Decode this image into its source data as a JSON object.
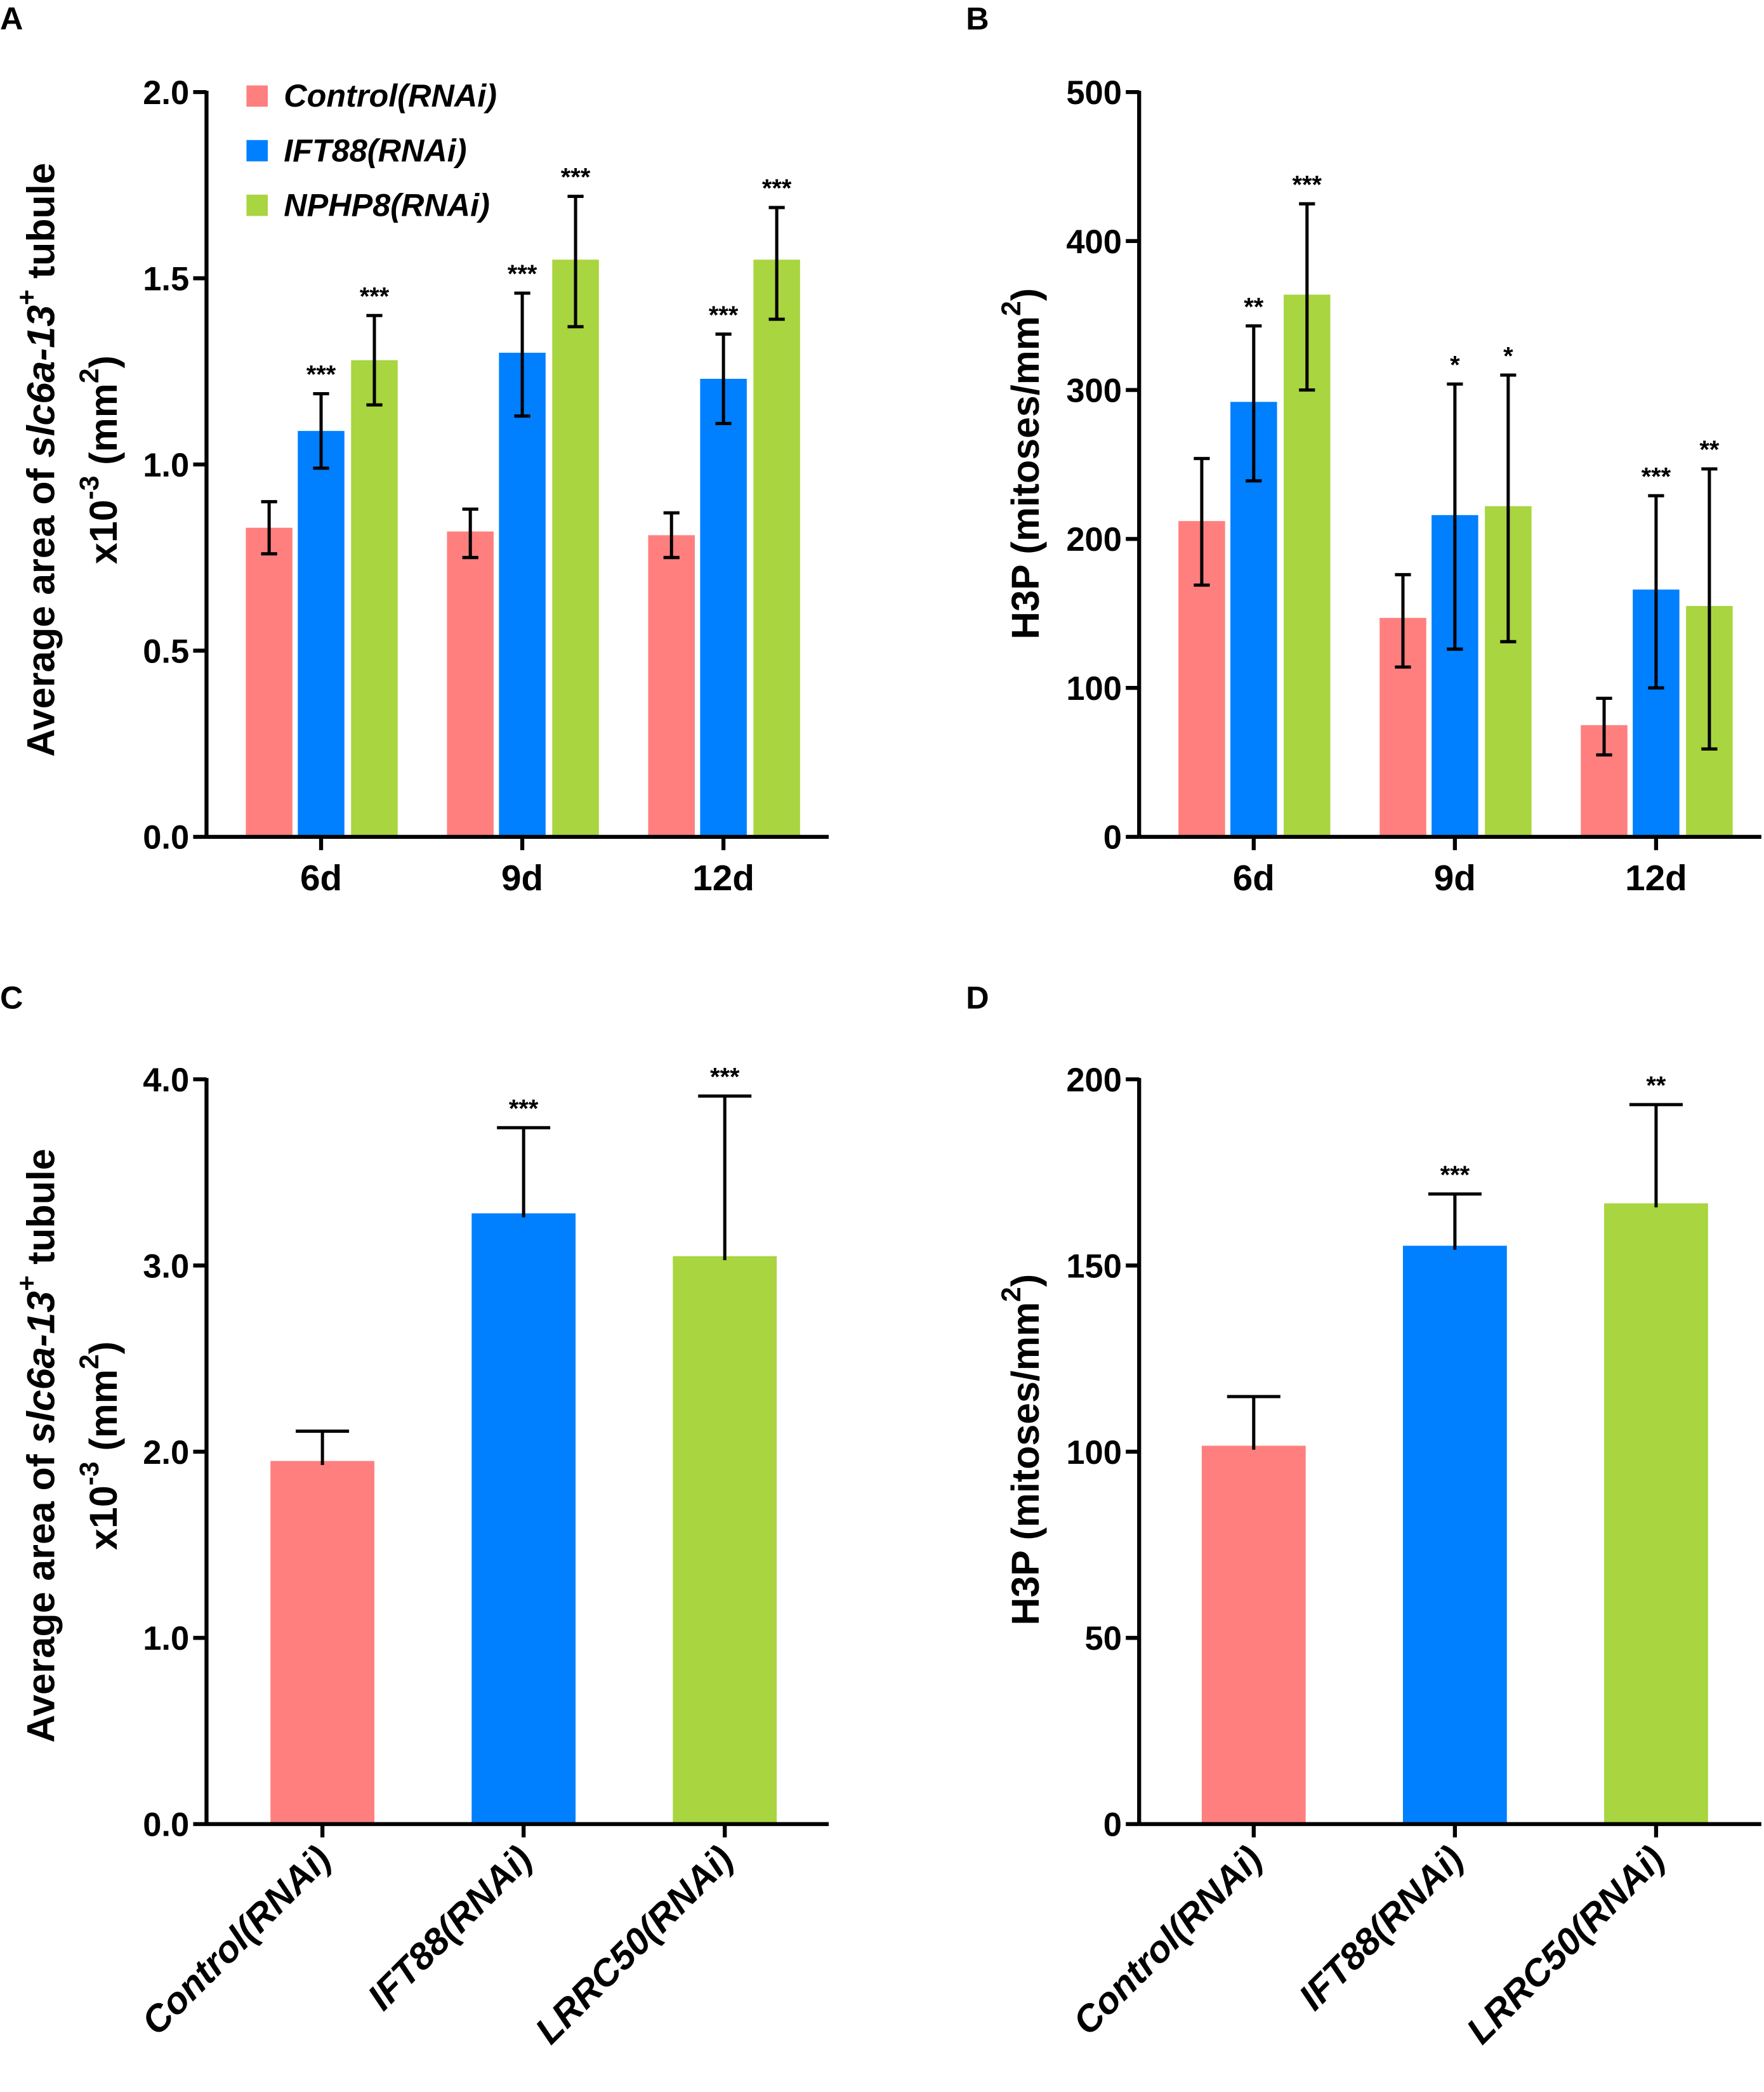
{
  "colors": {
    "control": "#FF7F7F",
    "ift88": "#007FFF",
    "green": "#A8D540",
    "axis": "#000000"
  },
  "chart_data": [
    {
      "panel": "A",
      "type": "bar",
      "categories": [
        "6d",
        "9d",
        "12d"
      ],
      "ylim": [
        0,
        2.0
      ],
      "yticks": [
        "0.0",
        "0.5",
        "1.0",
        "1.5",
        "2.0"
      ],
      "ytick_values": [
        0,
        0.5,
        1.0,
        1.5,
        2.0
      ],
      "ylabel": [
        [
          {
            "t": "Average area of "
          },
          {
            "t": "slc6a-13",
            "i": true
          },
          {
            "t": "+",
            "sup": true
          },
          {
            "t": " tubule"
          }
        ],
        [
          {
            "t": "x10"
          },
          {
            "t": "-3",
            "sup": true
          },
          {
            "t": " (mm"
          },
          {
            "t": "2",
            "sup": true
          },
          {
            "t": ")"
          }
        ]
      ],
      "legend": {
        "position": "top-left",
        "entries": [
          "Control(RNAi)",
          "IFT88(RNAi)",
          "NPHP8(RNAi)"
        ]
      },
      "series": [
        {
          "name": "Control(RNAi)",
          "color_key": "control",
          "values": [
            0.83,
            0.82,
            0.81
          ],
          "err_hi": [
            0.9,
            0.88,
            0.87
          ],
          "err_lo": [
            0.76,
            0.75,
            0.75
          ],
          "sig": [
            "",
            "",
            ""
          ]
        },
        {
          "name": "IFT88(RNAi)",
          "color_key": "ift88",
          "values": [
            1.09,
            1.3,
            1.23
          ],
          "err_hi": [
            1.19,
            1.46,
            1.35
          ],
          "err_lo": [
            0.99,
            1.13,
            1.11
          ],
          "sig": [
            "***",
            "***",
            "***"
          ]
        },
        {
          "name": "NPHP8(RNAi)",
          "color_key": "green",
          "values": [
            1.28,
            1.55,
            1.55
          ],
          "err_hi": [
            1.4,
            1.72,
            1.69
          ],
          "err_lo": [
            1.16,
            1.37,
            1.39
          ],
          "sig": [
            "***",
            "***",
            "***"
          ]
        }
      ]
    },
    {
      "panel": "B",
      "type": "bar",
      "categories": [
        "6d",
        "9d",
        "12d"
      ],
      "ylim": [
        0,
        500
      ],
      "yticks": [
        "0",
        "100",
        "200",
        "300",
        "400",
        "500"
      ],
      "ytick_values": [
        0,
        100,
        200,
        300,
        400,
        500
      ],
      "ylabel": [
        [
          {
            "t": "H3P (mitoses/mm"
          },
          {
            "t": "2",
            "sup": true
          },
          {
            "t": ")"
          }
        ]
      ],
      "series": [
        {
          "color_key": "control",
          "values": [
            212,
            147,
            75
          ],
          "err_hi": [
            254,
            176,
            93
          ],
          "err_lo": [
            169,
            114,
            55
          ],
          "sig": [
            "",
            "",
            ""
          ]
        },
        {
          "color_key": "ift88",
          "values": [
            292,
            216,
            166
          ],
          "err_hi": [
            343,
            304,
            229
          ],
          "err_lo": [
            239,
            126,
            100
          ],
          "sig": [
            "**",
            "*",
            "***"
          ]
        },
        {
          "color_key": "green",
          "values": [
            364,
            222,
            155
          ],
          "err_hi": [
            425,
            310,
            247
          ],
          "err_lo": [
            300,
            131,
            59
          ],
          "sig": [
            "***",
            "*",
            "**"
          ]
        }
      ]
    },
    {
      "panel": "C",
      "type": "bar",
      "categories": [
        "Control(RNAi)",
        "IFT88(RNAi)",
        "LRRC50(RNAi)"
      ],
      "ylim": [
        0,
        4.0
      ],
      "yticks": [
        "0.0",
        "1.0",
        "2.0",
        "3.0",
        "4.0"
      ],
      "ytick_values": [
        0,
        1,
        2,
        3,
        4
      ],
      "ylabel": [
        [
          {
            "t": "Average area of "
          },
          {
            "t": "slc6a-13",
            "i": true
          },
          {
            "t": "+",
            "sup": true
          },
          {
            "t": " tubule"
          }
        ],
        [
          {
            "t": "x10"
          },
          {
            "t": "-3",
            "sup": true
          },
          {
            "t": " (mm"
          },
          {
            "t": "2",
            "sup": true
          },
          {
            "t": ")"
          }
        ]
      ],
      "values": [
        1.95,
        3.28,
        3.05
      ],
      "err_hi": [
        2.11,
        3.74,
        3.91
      ],
      "color_keys": [
        "control",
        "ift88",
        "green"
      ],
      "sig": [
        "",
        "***",
        "***"
      ]
    },
    {
      "panel": "D",
      "type": "bar",
      "categories": [
        "Control(RNAi)",
        "IFT88(RNAi)",
        "LRRC50(RNAi)"
      ],
      "ylim": [
        0,
        200
      ],
      "yticks": [
        "0",
        "50",
        "100",
        "150",
        "200"
      ],
      "ytick_values": [
        0,
        50,
        100,
        150,
        200
      ],
      "ylabel": [
        [
          {
            "t": "H3P (mitoses/mm"
          },
          {
            "t": "2",
            "sup": true
          },
          {
            "t": ")"
          }
        ]
      ],
      "values": [
        101.6,
        155.3,
        166.7
      ],
      "err_hi": [
        114.8,
        169.2,
        193.2
      ],
      "color_keys": [
        "control",
        "ift88",
        "green"
      ],
      "sig": [
        "",
        "***",
        "**"
      ]
    }
  ]
}
